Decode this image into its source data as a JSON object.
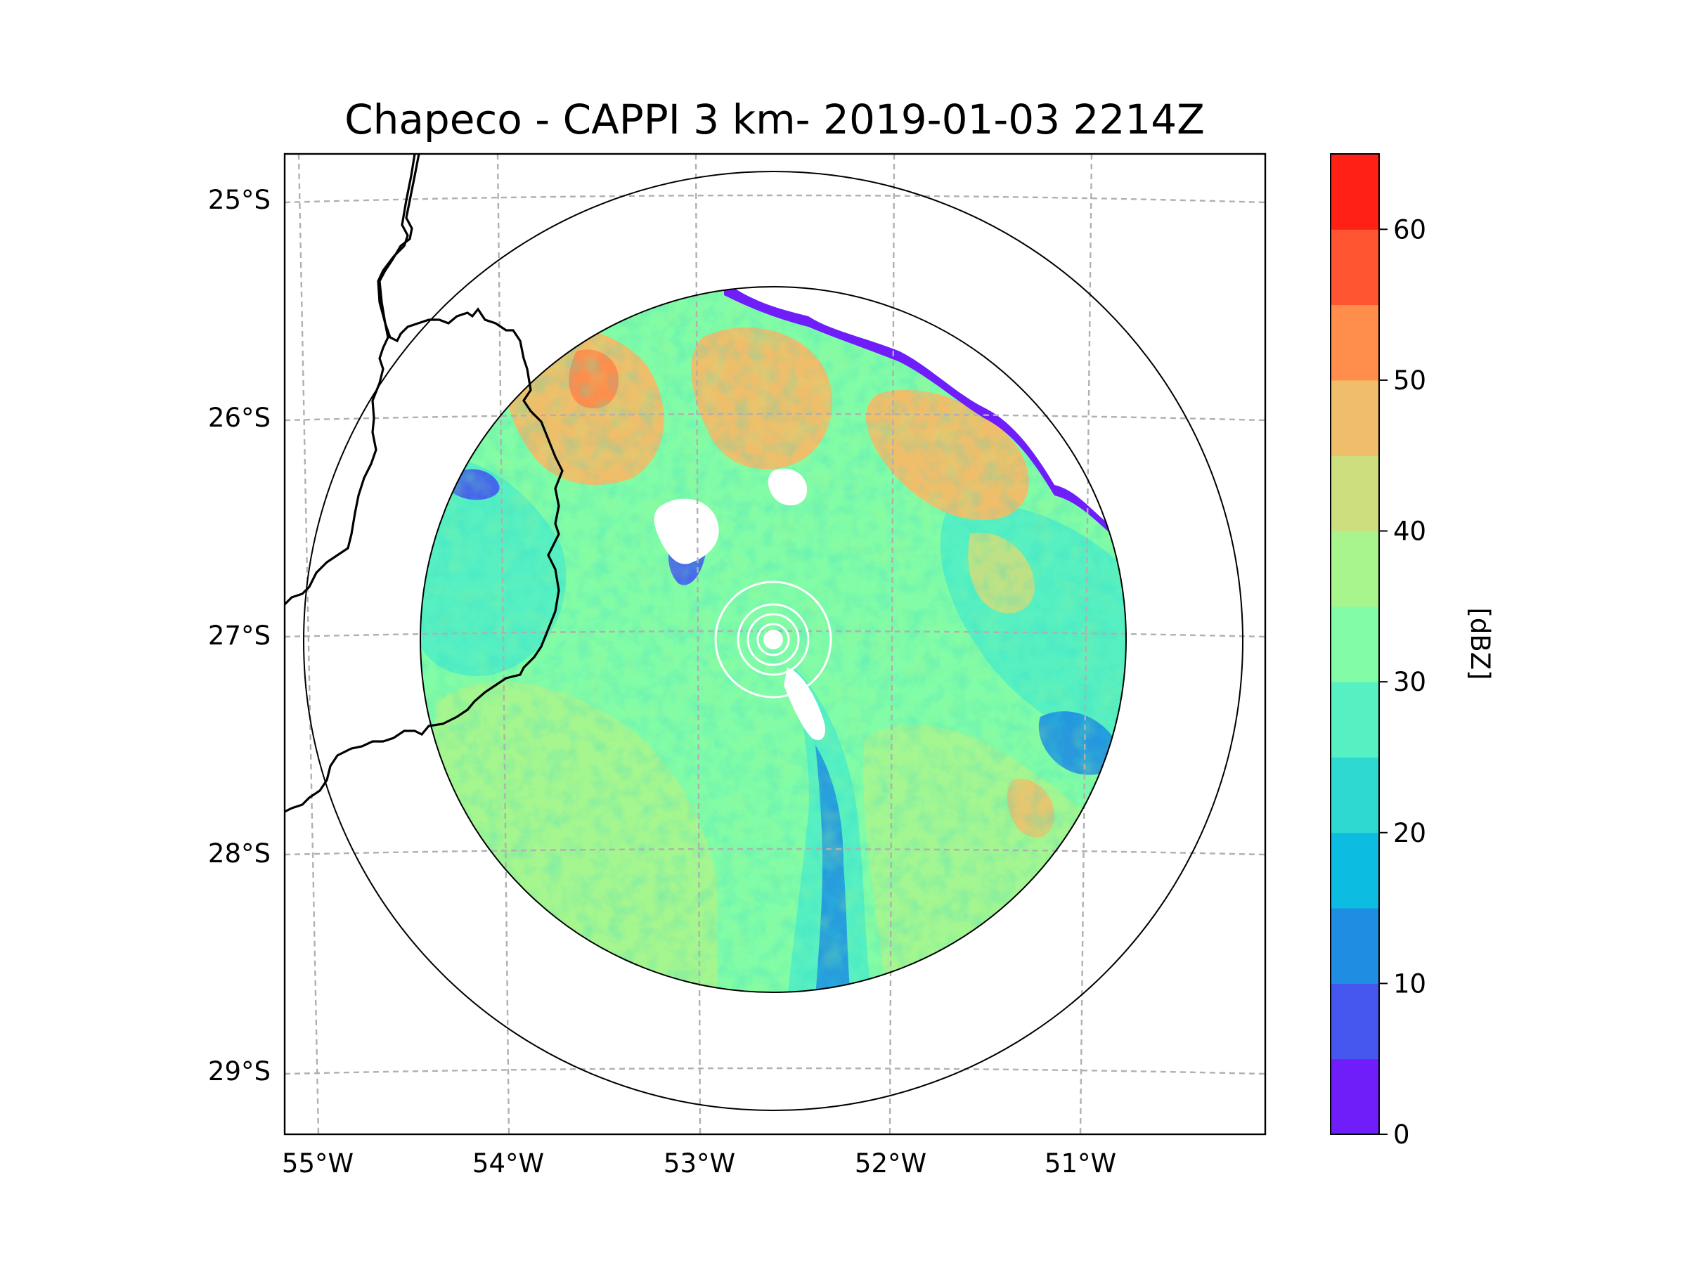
{
  "figure": {
    "title": "Chapeco - CAPPI 3 km- 2019-01-03 2214Z"
  },
  "map": {
    "lon_ticks": [
      {
        "value": -55,
        "label": "55°W"
      },
      {
        "value": -54,
        "label": "54°W"
      },
      {
        "value": -53,
        "label": "53°W"
      },
      {
        "value": -52,
        "label": "52°W"
      },
      {
        "value": -51,
        "label": "51°W"
      }
    ],
    "lat_ticks": [
      {
        "value": -25,
        "label": "25°S"
      },
      {
        "value": -26,
        "label": "26°S"
      },
      {
        "value": -27,
        "label": "27°S"
      },
      {
        "value": -28,
        "label": "28°S"
      },
      {
        "value": -29,
        "label": "29°S"
      }
    ],
    "radar_center": {
      "lon": -52.6,
      "lat": -27.05
    },
    "data_range_km": 250,
    "outer_ring_km": 300,
    "inner_rings_count": 4
  },
  "chart_data": {
    "type": "heatmap",
    "title": "Chapeco - CAPPI 3 km- 2019-01-03 2214Z",
    "variable": "reflectivity",
    "units": "[dBZ]",
    "xlabel": "",
    "ylabel": "",
    "lon_range": [
      -55.2,
      -50.05
    ],
    "lat_range": [
      -29.3,
      -24.8
    ],
    "colorbar": {
      "label": "[dBZ]",
      "min": 0,
      "max": 65,
      "levels": [
        0,
        5,
        10,
        15,
        20,
        25,
        30,
        35,
        40,
        45,
        50,
        55,
        60,
        65
      ],
      "tick_values": [
        0,
        10,
        20,
        30,
        40,
        50,
        60
      ],
      "tick_labels": [
        "0",
        "10",
        "20",
        "30",
        "40",
        "50",
        "60"
      ],
      "colors": [
        "#6f1df9",
        "#4557ef",
        "#1f8ee2",
        "#0dbde1",
        "#2ed9d1",
        "#56f0c2",
        "#82fca6",
        "#a9f58d",
        "#ccde7e",
        "#f0be6a",
        "#ff8d4c",
        "#ff5631",
        "#ff2016"
      ]
    },
    "features": [
      {
        "name": "dominant field south and west",
        "approx_dbz": 35
      },
      {
        "name": "stronger cells north and northwest",
        "approx_dbz": 50
      },
      {
        "name": "weak band south of radar",
        "approx_dbz": 10
      },
      {
        "name": "no echo gaps north",
        "approx_dbz": null
      }
    ]
  }
}
